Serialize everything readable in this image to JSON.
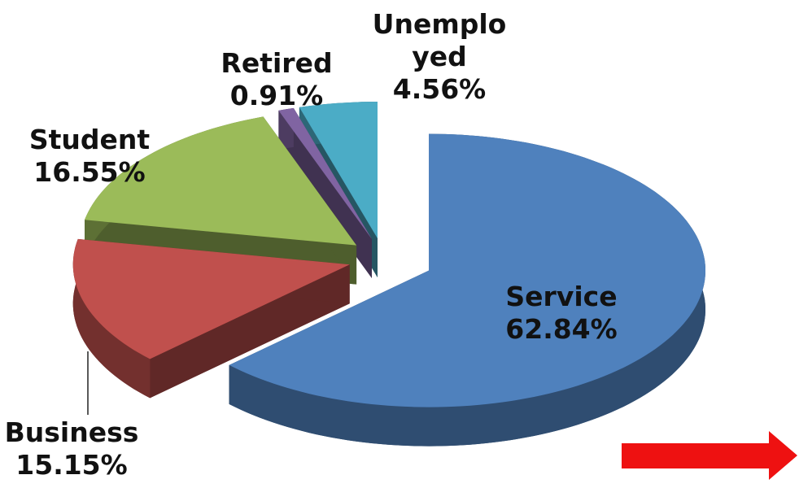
{
  "chart_data": {
    "type": "pie",
    "categories": [
      "Service",
      "Business",
      "Student",
      "Retired",
      "Unemployed"
    ],
    "values": [
      62.84,
      15.15,
      16.55,
      0.91,
      4.56
    ],
    "value_labels": [
      "62.84%",
      "15.15%",
      "16.55%",
      "0.91%",
      "4.56%"
    ],
    "colors": [
      "#4f81bd",
      "#c0504d",
      "#9bbb59",
      "#8064a2",
      "#4bacc6"
    ]
  }
}
